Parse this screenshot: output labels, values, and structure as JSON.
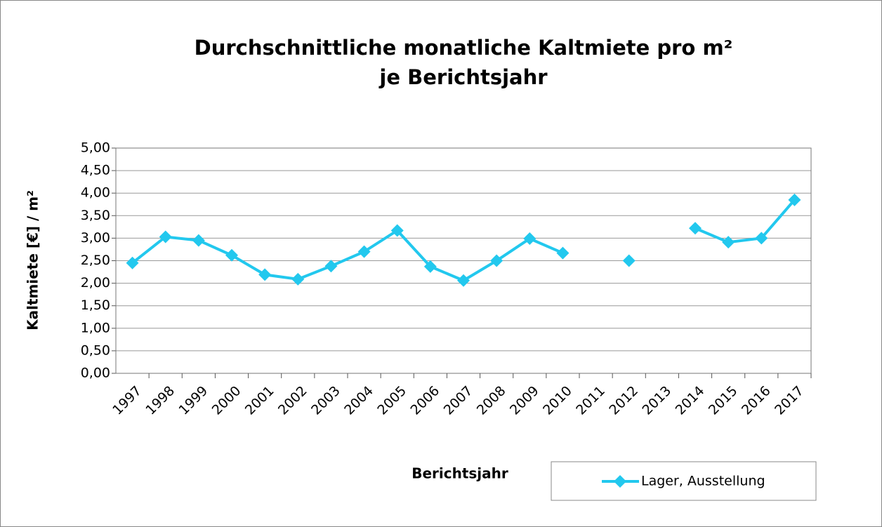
{
  "chart_data": {
    "type": "line",
    "title": [
      "Durchschnittliche monatliche Kaltmiete pro m²",
      "je Berichtsjahr"
    ],
    "x_label": "Berichtsjahr",
    "y_label": "Kaltmiete [€] / m²",
    "categories": [
      "1997",
      "1998",
      "1999",
      "2000",
      "2001",
      "2002",
      "2003",
      "2004",
      "2005",
      "2006",
      "2007",
      "2008",
      "2009",
      "2010",
      "2011",
      "2012",
      "2013",
      "2014",
      "2015",
      "2016",
      "2017"
    ],
    "series": [
      {
        "name": "Lager, Ausstellung",
        "color": "#22c8ee",
        "values": [
          2.45,
          3.03,
          2.95,
          2.62,
          2.19,
          2.09,
          2.38,
          2.7,
          3.17,
          2.37,
          2.06,
          2.5,
          2.99,
          2.67,
          null,
          2.5,
          null,
          3.22,
          2.91,
          3.0,
          3.85
        ]
      }
    ],
    "ylim": [
      0,
      5
    ],
    "yticks": [
      {
        "value": 0,
        "label": "0,00"
      },
      {
        "value": 0.5,
        "label": "0,50"
      },
      {
        "value": 1,
        "label": "1,00"
      },
      {
        "value": 1.5,
        "label": "1,50"
      },
      {
        "value": 2,
        "label": "2,00"
      },
      {
        "value": 2.5,
        "label": "2,50"
      },
      {
        "value": 3,
        "label": "3,00"
      },
      {
        "value": 3.5,
        "label": "3,50"
      },
      {
        "value": 4,
        "label": "4,00"
      },
      {
        "value": 4.5,
        "label": "4,50"
      },
      {
        "value": 5,
        "label": "5,00"
      }
    ],
    "grid": true,
    "legend": "bottom-right"
  }
}
